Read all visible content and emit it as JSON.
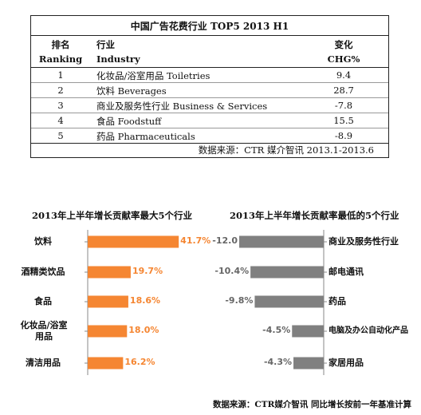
{
  "table": {
    "title": "中国广告花费行业 TOP5 2013 H1",
    "header_cn": {
      "rank": "排名",
      "industry": "行业",
      "change": "变化"
    },
    "header_en": {
      "rank": "Ranking",
      "industry": "Industry",
      "change": "CHG%"
    },
    "rows": [
      {
        "rank": "1",
        "industry": "化妆品/浴室用品  Toiletries",
        "change": "9.4"
      },
      {
        "rank": "2",
        "industry": "饮料 Beverages",
        "change": "28.7"
      },
      {
        "rank": "3",
        "industry": "商业及服务性行业 Business & Services",
        "change": "-7.8"
      },
      {
        "rank": "4",
        "industry": "食品 Foodstuff",
        "change": "15.5"
      },
      {
        "rank": "5",
        "industry": "药品 Pharmaceuticals",
        "change": "-8.9"
      }
    ],
    "source": "数据来源：CTR 媒介智讯  2013.1-2013.6"
  },
  "chart_data": [
    {
      "type": "bar",
      "orientation": "horizontal",
      "title": "2013年上半年增长贡献率最大5个行业",
      "categories": [
        "饮料",
        "酒精类饮品",
        "食品",
        "化妆品/浴室用品",
        "清洁用品"
      ],
      "values": [
        41.7,
        19.7,
        18.6,
        18.0,
        16.2
      ],
      "labels": [
        "41.7%",
        "19.7%",
        "18.6%",
        "18.0%",
        "16.2%"
      ],
      "color": "#f58632"
    },
    {
      "type": "bar",
      "orientation": "horizontal",
      "title": "2013年上半年增长贡献率最低的5个行业",
      "categories": [
        "商业及服务性行业",
        "邮电通讯",
        "药品",
        "电脑及办公自动化产品",
        "家居用品"
      ],
      "values": [
        -12.0,
        -10.4,
        -9.8,
        -4.5,
        -4.3
      ],
      "labels": [
        "-12.0",
        "-10.4%",
        "-9.8%",
        "-4.5%",
        "-4.3%"
      ],
      "color": "#808080"
    }
  ],
  "footer": {
    "source": "数据来源：CTR媒介智讯   同比增长按前一年基准计算"
  }
}
